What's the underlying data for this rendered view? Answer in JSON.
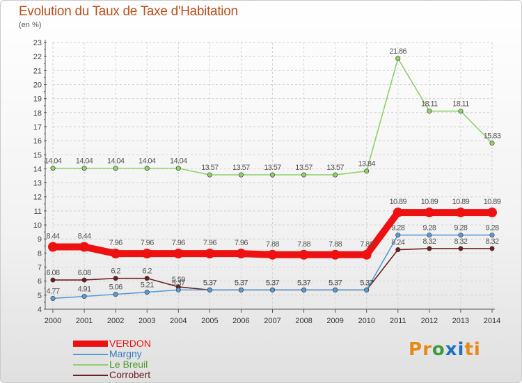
{
  "chart_data": {
    "type": "line",
    "title": "Evolution du Taux de Taxe d'Habitation",
    "subtitle": "(en %)",
    "x": [
      "2000",
      "2001",
      "2002",
      "2003",
      "2004",
      "2005",
      "2006",
      "2007",
      "2008",
      "2009",
      "2010",
      "2011",
      "2012",
      "2013",
      "2014"
    ],
    "ylim": [
      4,
      23
    ],
    "yticks": [
      4,
      5,
      6,
      7,
      8,
      9,
      10,
      11,
      12,
      13,
      14,
      15,
      16,
      17,
      18,
      19,
      20,
      21,
      22,
      23
    ],
    "grid": true,
    "series": [
      {
        "name": "Corrobert",
        "color": "#6b1f1f",
        "values": [
          6.08,
          6.08,
          6.2,
          6.2,
          5.59,
          5.37,
          5.37,
          5.37,
          5.37,
          5.37,
          5.37,
          8.24,
          8.32,
          8.32,
          8.32
        ],
        "labels": [
          "6.08",
          "6.08",
          "6.2",
          "6.2",
          "5.59",
          "5.37",
          "5.37",
          "5.37",
          "5.37",
          "5.37",
          "5.37",
          "8.24",
          "8.32",
          "8.32",
          "8.32"
        ]
      },
      {
        "name": "Margny",
        "color": "#5b9bd5",
        "values": [
          4.77,
          4.91,
          5.06,
          5.21,
          5.37,
          5.37,
          5.37,
          5.37,
          5.37,
          5.37,
          5.37,
          9.28,
          9.28,
          9.28,
          9.28
        ],
        "labels": [
          "4.77",
          "4.91",
          "5.06",
          "5.21",
          "5.37",
          "5.37",
          "5.37",
          "5.37",
          "5.37",
          "5.37",
          "5.37",
          "9.28",
          "9.28",
          "9.28",
          "9.28"
        ]
      },
      {
        "name": "Le Breuil",
        "color": "#8fd16a",
        "values": [
          14.04,
          14.04,
          14.04,
          14.04,
          14.04,
          13.57,
          13.57,
          13.57,
          13.57,
          13.57,
          13.84,
          21.86,
          18.11,
          18.11,
          15.83
        ],
        "labels": [
          "14.04",
          "14.04",
          "14.04",
          "14.04",
          "14.04",
          "13.57",
          "13.57",
          "13.57",
          "13.57",
          "13.57",
          "13.84",
          "21.86",
          "18.11",
          "18.11",
          "15.83"
        ]
      },
      {
        "name": "VERDON",
        "color": "#ee1111",
        "values": [
          8.44,
          8.44,
          7.96,
          7.96,
          7.96,
          7.96,
          7.96,
          7.88,
          7.88,
          7.88,
          7.88,
          10.89,
          10.89,
          10.89,
          10.89
        ],
        "labels": [
          "8.44",
          "8.44",
          "7.96",
          "7.96",
          "7.96",
          "7.96",
          "7.96",
          "7.88",
          "7.88",
          "7.88",
          "7.88",
          "10.89",
          "10.89",
          "10.89",
          "10.89"
        ]
      }
    ],
    "legend": [
      "VERDON",
      "Margny",
      "Le Breuil",
      "Corrobert"
    ]
  },
  "logo": {
    "text": "Proxiti",
    "letters": [
      "P",
      "r",
      "o",
      "x",
      "i",
      "t",
      "i"
    ],
    "colors": [
      "#e58a17",
      "#e58a17",
      "#3c9b3c",
      "#1f6fc0",
      "#1f6fc0",
      "#e58a17",
      "#e58a17"
    ]
  }
}
